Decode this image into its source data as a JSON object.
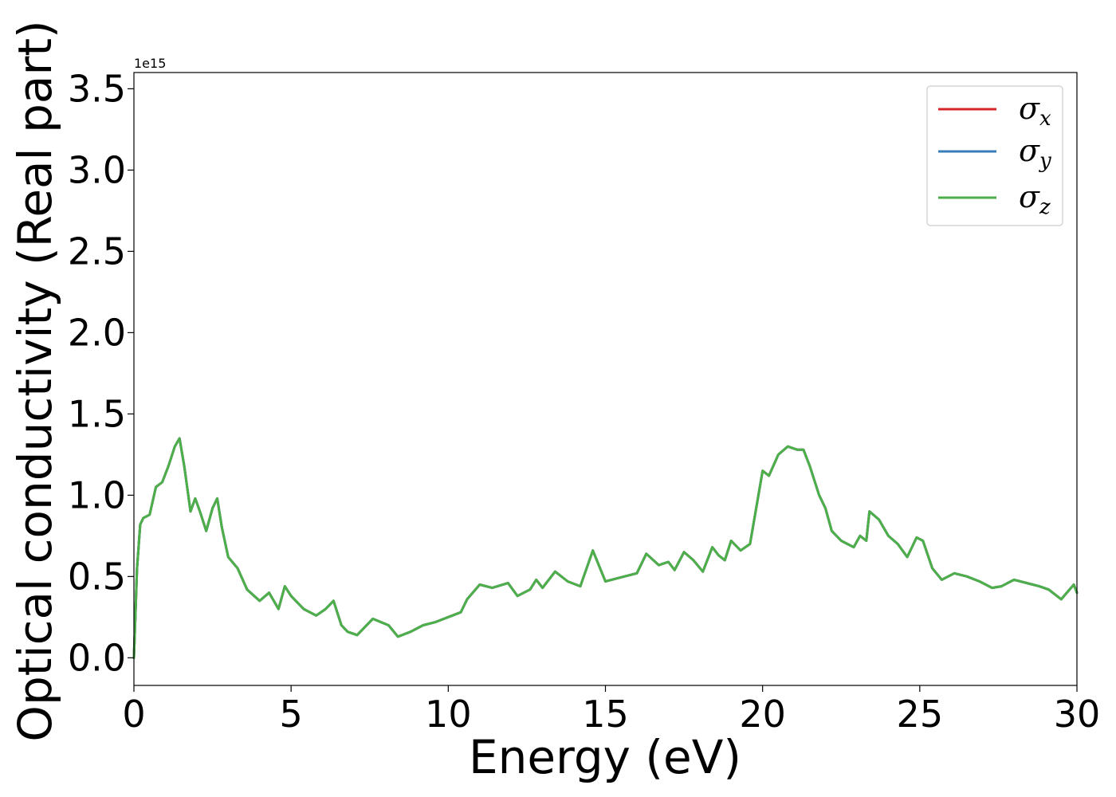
{
  "chart_data": {
    "type": "line",
    "xlabel": "Energy (eV)",
    "ylabel": "Optical conductivity (Real part)",
    "y_offset_text": "1e15",
    "xlim": [
      0,
      30
    ],
    "ylim": [
      -0.17,
      3.6
    ],
    "x_ticks": [
      0,
      5,
      10,
      15,
      20,
      25,
      30
    ],
    "x_tick_labels": [
      "0",
      "5",
      "10",
      "15",
      "20",
      "25",
      "30"
    ],
    "y_ticks": [
      0.0,
      0.5,
      1.0,
      1.5,
      2.0,
      2.5,
      3.0,
      3.5
    ],
    "y_tick_labels": [
      "0.0",
      "0.5",
      "1.0",
      "1.5",
      "2.0",
      "2.5",
      "3.0",
      "3.5"
    ],
    "grid": false,
    "legend_position": "top-right",
    "x": [
      0.0,
      0.1,
      0.2,
      0.3,
      0.5,
      0.7,
      0.9,
      1.1,
      1.3,
      1.45,
      1.6,
      1.8,
      1.95,
      2.1,
      2.3,
      2.5,
      2.65,
      2.8,
      3.0,
      3.3,
      3.6,
      4.0,
      4.3,
      4.6,
      4.8,
      5.0,
      5.4,
      5.8,
      6.1,
      6.35,
      6.6,
      6.8,
      7.1,
      7.6,
      8.1,
      8.4,
      8.8,
      9.2,
      9.6,
      10.0,
      10.4,
      10.6,
      11.0,
      11.4,
      11.9,
      12.2,
      12.6,
      12.8,
      13.0,
      13.4,
      13.8,
      14.2,
      14.6,
      15.0,
      15.6,
      16.0,
      16.3,
      16.7,
      17.0,
      17.2,
      17.5,
      17.8,
      18.1,
      18.4,
      18.6,
      18.8,
      19.0,
      19.3,
      19.6,
      20.0,
      20.2,
      20.5,
      20.8,
      21.1,
      21.3,
      21.5,
      21.8,
      22.0,
      22.2,
      22.5,
      22.9,
      23.1,
      23.3,
      23.4,
      23.7,
      24.0,
      24.3,
      24.6,
      24.9,
      25.1,
      25.4,
      25.7,
      26.1,
      26.5,
      26.9,
      27.3,
      27.6,
      28.0,
      28.4,
      28.8,
      29.1,
      29.5,
      29.9,
      30.0
    ],
    "series": [
      {
        "name": "σ",
        "subscript": "x",
        "color": "#d62728",
        "values": [
          0.0,
          0.55,
          0.82,
          0.86,
          0.88,
          1.05,
          1.08,
          1.18,
          1.3,
          1.35,
          1.18,
          0.9,
          0.98,
          0.9,
          0.78,
          0.92,
          0.98,
          0.8,
          0.62,
          0.55,
          0.42,
          0.35,
          0.4,
          0.3,
          0.44,
          0.38,
          0.3,
          0.26,
          0.3,
          0.35,
          0.2,
          0.16,
          0.14,
          0.24,
          0.2,
          0.13,
          0.16,
          0.2,
          0.22,
          0.25,
          0.28,
          0.36,
          0.45,
          0.43,
          0.46,
          0.38,
          0.42,
          0.48,
          0.43,
          0.53,
          0.47,
          0.44,
          0.66,
          0.47,
          0.5,
          0.52,
          0.64,
          0.57,
          0.59,
          0.54,
          0.65,
          0.6,
          0.53,
          0.68,
          0.63,
          0.6,
          0.72,
          0.66,
          0.7,
          1.15,
          1.12,
          1.25,
          1.3,
          1.28,
          1.28,
          1.18,
          1.0,
          0.92,
          0.78,
          0.72,
          0.68,
          0.75,
          0.72,
          0.9,
          0.85,
          0.75,
          0.7,
          0.62,
          0.74,
          0.72,
          0.55,
          0.48,
          0.52,
          0.5,
          0.47,
          0.43,
          0.44,
          0.48,
          0.46,
          0.44,
          0.42,
          0.36,
          0.45,
          0.4
        ]
      },
      {
        "name": "σ",
        "subscript": "y",
        "color": "#377eb8",
        "values": [
          0.0,
          0.55,
          0.82,
          0.86,
          0.88,
          1.05,
          1.08,
          1.18,
          1.3,
          1.35,
          1.18,
          0.9,
          0.98,
          0.9,
          0.78,
          0.92,
          0.98,
          0.8,
          0.62,
          0.55,
          0.42,
          0.35,
          0.4,
          0.3,
          0.44,
          0.38,
          0.3,
          0.26,
          0.3,
          0.35,
          0.2,
          0.16,
          0.14,
          0.24,
          0.2,
          0.13,
          0.16,
          0.2,
          0.22,
          0.25,
          0.28,
          0.36,
          0.45,
          0.43,
          0.46,
          0.38,
          0.42,
          0.48,
          0.43,
          0.53,
          0.47,
          0.44,
          0.66,
          0.47,
          0.5,
          0.52,
          0.64,
          0.57,
          0.59,
          0.54,
          0.65,
          0.6,
          0.53,
          0.68,
          0.63,
          0.6,
          0.72,
          0.66,
          0.7,
          1.15,
          1.12,
          1.25,
          1.3,
          1.28,
          1.28,
          1.18,
          1.0,
          0.92,
          0.78,
          0.72,
          0.68,
          0.75,
          0.72,
          0.9,
          0.85,
          0.75,
          0.7,
          0.62,
          0.74,
          0.72,
          0.55,
          0.48,
          0.52,
          0.5,
          0.47,
          0.43,
          0.44,
          0.48,
          0.46,
          0.44,
          0.42,
          0.36,
          0.45,
          0.4
        ]
      },
      {
        "name": "σ",
        "subscript": "z",
        "color": "#4daf4a",
        "values": [
          0.0,
          0.55,
          0.82,
          0.86,
          0.88,
          1.05,
          1.08,
          1.18,
          1.3,
          1.35,
          1.18,
          0.9,
          0.98,
          0.9,
          0.78,
          0.92,
          0.98,
          0.8,
          0.62,
          0.55,
          0.42,
          0.35,
          0.4,
          0.3,
          0.44,
          0.38,
          0.3,
          0.26,
          0.3,
          0.35,
          0.2,
          0.16,
          0.14,
          0.24,
          0.2,
          0.13,
          0.16,
          0.2,
          0.22,
          0.25,
          0.28,
          0.36,
          0.45,
          0.43,
          0.46,
          0.38,
          0.42,
          0.48,
          0.43,
          0.53,
          0.47,
          0.44,
          0.66,
          0.47,
          0.5,
          0.52,
          0.64,
          0.57,
          0.59,
          0.54,
          0.65,
          0.6,
          0.53,
          0.68,
          0.63,
          0.6,
          0.72,
          0.66,
          0.7,
          1.15,
          1.12,
          1.25,
          1.3,
          1.28,
          1.28,
          1.18,
          1.0,
          0.92,
          0.78,
          0.72,
          0.68,
          0.75,
          0.72,
          0.9,
          0.85,
          0.75,
          0.7,
          0.62,
          0.74,
          0.72,
          0.55,
          0.48,
          0.52,
          0.5,
          0.47,
          0.43,
          0.44,
          0.48,
          0.46,
          0.44,
          0.42,
          0.36,
          0.45,
          0.4
        ]
      }
    ]
  }
}
